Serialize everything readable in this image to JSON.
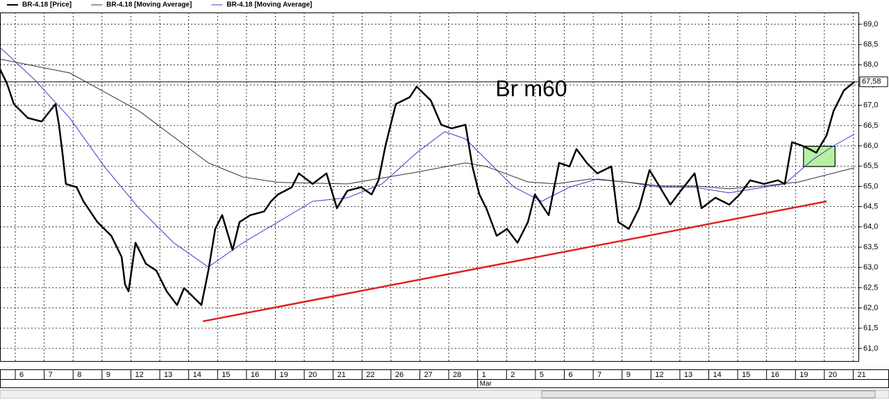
{
  "chart_data": {
    "type": "line",
    "series": [
      {
        "name": "BR-4.18 [Price]",
        "color": "#000000",
        "width": 2.5,
        "x": [
          -0.53,
          -0.29,
          -0.05,
          0.43,
          0.91,
          1.39,
          1.51,
          1.63,
          1.75,
          2.12,
          2.36,
          2.84,
          3.32,
          3.68,
          3.8,
          3.92,
          4.16,
          4.52,
          4.88,
          5.24,
          5.6,
          5.84,
          6.2,
          6.44,
          6.68,
          6.92,
          7.16,
          7.52,
          7.76,
          8.13,
          8.61,
          8.85,
          9.09,
          9.57,
          9.81,
          10.29,
          10.77,
          11.13,
          11.49,
          11.97,
          12.33,
          12.57,
          12.81,
          13.17,
          13.65,
          13.89,
          14.38,
          14.74,
          15.1,
          15.58,
          15.82,
          16.06,
          16.3,
          16.66,
          17.02,
          17.38,
          17.74,
          17.98,
          18.46,
          18.82,
          19.18,
          19.42,
          19.78,
          20.14,
          20.63,
          20.87,
          21.23,
          21.59,
          21.95,
          22.31,
          22.67,
          23.03,
          23.51,
          23.75,
          24.23,
          24.71,
          25.07,
          25.43,
          25.91,
          26.39,
          26.63,
          26.88,
          27.24,
          27.48,
          27.72,
          28.08,
          28.32,
          28.68,
          29.04
        ],
        "values": [
          67.89,
          67.54,
          67.03,
          66.69,
          66.6,
          67.03,
          66.52,
          65.83,
          65.06,
          64.98,
          64.63,
          64.12,
          63.78,
          63.26,
          62.58,
          62.41,
          63.61,
          63.09,
          62.92,
          62.41,
          62.07,
          62.49,
          62.24,
          62.07,
          62.92,
          63.95,
          64.29,
          63.43,
          64.12,
          64.29,
          64.38,
          64.63,
          64.8,
          64.98,
          65.32,
          65.06,
          65.32,
          64.46,
          64.89,
          64.98,
          64.8,
          65.15,
          66.0,
          67.03,
          67.2,
          67.46,
          67.12,
          66.52,
          66.43,
          66.52,
          65.49,
          64.8,
          64.46,
          63.78,
          63.95,
          63.61,
          64.12,
          64.8,
          64.29,
          65.58,
          65.49,
          65.92,
          65.58,
          65.32,
          65.49,
          64.12,
          63.95,
          64.46,
          65.4,
          64.98,
          64.55,
          64.89,
          65.32,
          64.46,
          64.72,
          64.55,
          64.8,
          65.15,
          65.06,
          65.15,
          65.06,
          66.09,
          66.0,
          65.92,
          65.83,
          66.26,
          66.86,
          67.37,
          67.58
        ]
      },
      {
        "name": "BR-4.18 [Moving Average]",
        "color": "#333333",
        "width": 1,
        "x": [
          -0.53,
          1.88,
          4.28,
          6.68,
          7.88,
          9.09,
          11.49,
          13.89,
          15.58,
          16.3,
          17.74,
          18.7,
          19.9,
          21.11,
          22.31,
          23.51,
          24.71,
          25.91,
          27.12,
          29.04
        ],
        "values": [
          68.14,
          67.8,
          66.86,
          65.58,
          65.23,
          65.1,
          65.06,
          65.35,
          65.58,
          65.49,
          65.11,
          65.06,
          65.18,
          65.11,
          65.01,
          65.01,
          64.94,
          65.01,
          65.11,
          65.46
        ]
      },
      {
        "name": "BR-4.18 [Moving Average]",
        "color": "#3a3ad0",
        "width": 1,
        "x": [
          -0.53,
          0.67,
          1.88,
          3.08,
          4.28,
          5.48,
          6.68,
          7.88,
          9.09,
          10.29,
          11.49,
          12.69,
          13.89,
          14.86,
          15.58,
          16.3,
          17.26,
          18.22,
          19.18,
          20.14,
          21.11,
          22.31,
          23.51,
          24.71,
          25.91,
          26.63,
          27.6,
          28.32,
          29.04
        ],
        "values": [
          68.43,
          67.63,
          66.69,
          65.49,
          64.46,
          63.61,
          63.01,
          63.61,
          64.12,
          64.63,
          64.72,
          65.06,
          65.83,
          66.35,
          66.17,
          65.66,
          64.98,
          64.63,
          64.98,
          65.18,
          65.11,
          64.98,
          64.98,
          64.84,
          64.98,
          65.06,
          65.66,
          66.0,
          66.29
        ]
      }
    ],
    "xlim": [
      -0.53,
      29.18
    ],
    "ylim": [
      60.69,
      69.29
    ],
    "xticks": [
      {
        "value": 0,
        "label": "6"
      },
      {
        "value": 1,
        "label": "7"
      },
      {
        "value": 2,
        "label": "8"
      },
      {
        "value": 3,
        "label": "9"
      },
      {
        "value": 4,
        "label": "12"
      },
      {
        "value": 5,
        "label": "13"
      },
      {
        "value": 6,
        "label": "14"
      },
      {
        "value": 7,
        "label": "15"
      },
      {
        "value": 8,
        "label": "16"
      },
      {
        "value": 9,
        "label": "19"
      },
      {
        "value": 10,
        "label": "20"
      },
      {
        "value": 11,
        "label": "21"
      },
      {
        "value": 12,
        "label": "22"
      },
      {
        "value": 13,
        "label": "26"
      },
      {
        "value": 14,
        "label": "27"
      },
      {
        "value": 15,
        "label": "28"
      },
      {
        "value": 16,
        "label": "1",
        "month": "Mar"
      },
      {
        "value": 17,
        "label": "2"
      },
      {
        "value": 18,
        "label": "5"
      },
      {
        "value": 19,
        "label": "6"
      },
      {
        "value": 20,
        "label": "7"
      },
      {
        "value": 21,
        "label": "9"
      },
      {
        "value": 22,
        "label": "12"
      },
      {
        "value": 23,
        "label": "13"
      },
      {
        "value": 24,
        "label": "14"
      },
      {
        "value": 25,
        "label": "15"
      },
      {
        "value": 26,
        "label": "16"
      },
      {
        "value": 27,
        "label": "19"
      },
      {
        "value": 28,
        "label": "20"
      },
      {
        "value": 29,
        "label": "21"
      }
    ],
    "yticks": [
      {
        "value": 61,
        "label": "61,0"
      },
      {
        "value": 61.5,
        "label": "61,5"
      },
      {
        "value": 62,
        "label": "62,0"
      },
      {
        "value": 62.5,
        "label": "62,5"
      },
      {
        "value": 63,
        "label": "63,0"
      },
      {
        "value": 63.5,
        "label": "63,5"
      },
      {
        "value": 64,
        "label": "64,0"
      },
      {
        "value": 64.5,
        "label": "64,5"
      },
      {
        "value": 65,
        "label": "65,0"
      },
      {
        "value": 65.5,
        "label": "65,5"
      },
      {
        "value": 66,
        "label": "66,0"
      },
      {
        "value": 66.5,
        "label": "66,5"
      },
      {
        "value": 67,
        "label": "67,0"
      },
      {
        "value": 67.5,
        "label": "67,5"
      },
      {
        "value": 68,
        "label": "68,0"
      },
      {
        "value": 68.5,
        "label": "68,5"
      },
      {
        "value": 69,
        "label": "69,0"
      }
    ],
    "grid": true,
    "last_price": {
      "value": 67.58,
      "label": "67,58"
    },
    "annotation_text": "Br m60",
    "trendline": {
      "color": "#e02020",
      "x": [
        6.49,
        28.08
      ],
      "y": [
        61.67,
        64.63
      ]
    },
    "highlight_box": {
      "color": "#b8f0a0",
      "x": [
        27.28,
        28.37
      ],
      "y": [
        65.49,
        65.99
      ]
    }
  }
}
